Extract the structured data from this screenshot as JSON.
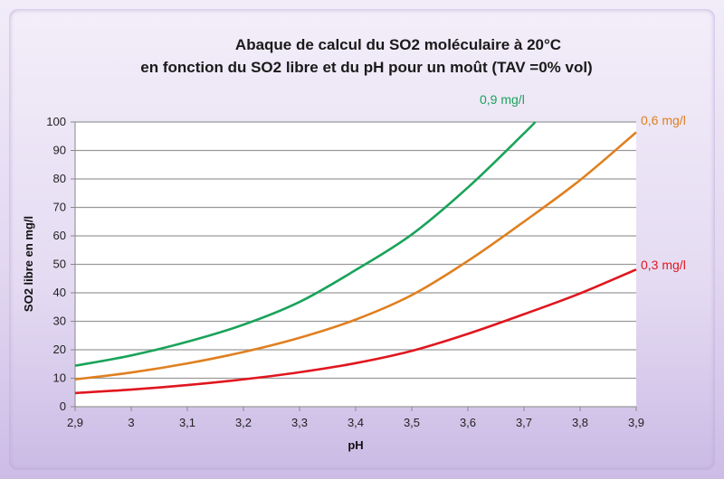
{
  "chart_data": {
    "type": "line",
    "title": [
      "Abaque de calcul du SO2 moléculaire à 20°C",
      "en fonction du SO2 libre et du pH pour un moût (TAV =0% vol)"
    ],
    "xlabel": "pH",
    "ylabel": "SO2 libre en mg/l",
    "xlim": [
      2.9,
      3.9
    ],
    "ylim": [
      0,
      100
    ],
    "xticks": [
      "2,9",
      "3",
      "3,1",
      "3,2",
      "3,3",
      "3,4",
      "3,5",
      "3,6",
      "3,7",
      "3,8",
      "3,9"
    ],
    "yticks": [
      "0",
      "10",
      "20",
      "30",
      "40",
      "50",
      "60",
      "70",
      "80",
      "90",
      "100"
    ],
    "grid": "horizontal",
    "series": [
      {
        "name": "0,9 mg/l",
        "color": "#1aa35a",
        "x": [
          2.9,
          3.0,
          3.1,
          3.2,
          3.3,
          3.4,
          3.5,
          3.6,
          3.7,
          3.72
        ],
        "y": [
          14.4,
          18,
          22.8,
          28.8,
          36.8,
          48,
          60.5,
          77,
          96,
          100
        ]
      },
      {
        "name": "0,6 mg/l",
        "color": "#e07f1f",
        "x": [
          2.9,
          3.0,
          3.1,
          3.2,
          3.3,
          3.4,
          3.5,
          3.6,
          3.7,
          3.8,
          3.9
        ],
        "y": [
          9.6,
          12,
          15.2,
          19.2,
          24.2,
          30.6,
          39.2,
          51.2,
          65,
          79.6,
          96.4
        ]
      },
      {
        "name": "0,3 mg/l",
        "color": "#e0161e",
        "x": [
          2.9,
          3.0,
          3.1,
          3.2,
          3.3,
          3.4,
          3.5,
          3.6,
          3.7,
          3.8,
          3.9
        ],
        "y": [
          4.8,
          6,
          7.6,
          9.6,
          12.1,
          15.3,
          19.6,
          25.6,
          32.5,
          39.8,
          48.2
        ]
      }
    ]
  }
}
